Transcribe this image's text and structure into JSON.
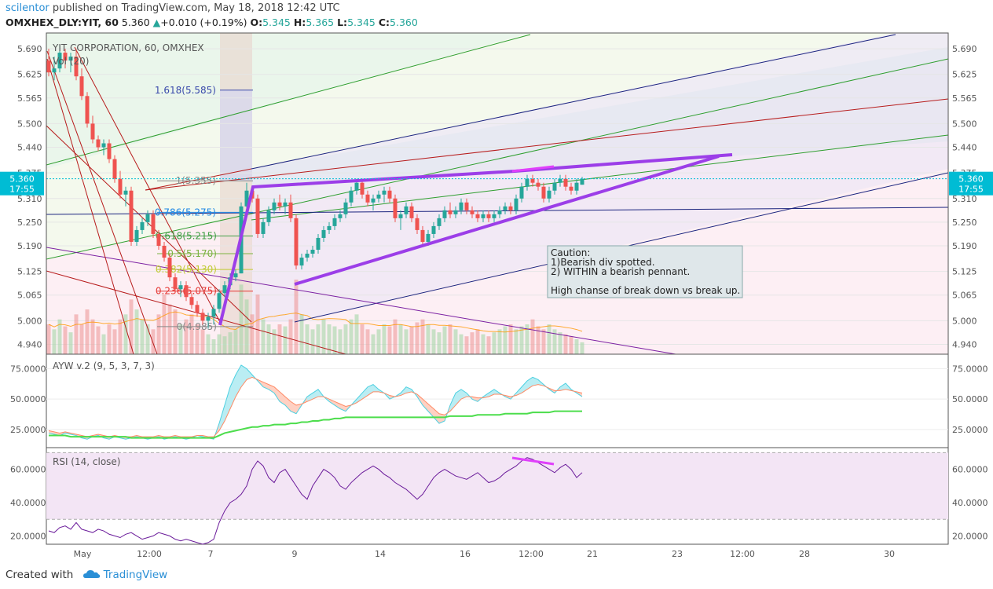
{
  "header": {
    "author": "scilentor",
    "published": "published on TradingView.com, May 18, 2018 12:42 UTC",
    "symbol": "OMXHEX_DLY:YIT, 60",
    "last": "5.360",
    "change": "+0.010 (+0.19%)",
    "o_label": "O:",
    "o": "5.345",
    "h_label": "H:",
    "h": "5.365",
    "l_label": "L:",
    "l": "5.345",
    "c_label": "C:",
    "c": "5.360"
  },
  "footer": {
    "created_with": "Created with",
    "brand": "TradingView"
  },
  "colors": {
    "up": "#26a69a",
    "down": "#ef5350",
    "bg_green": "#e8f5e9",
    "bg_pink": "#fce4ec",
    "bg_purple": "#ede7f6",
    "rsi_band": "#f3e5f5",
    "pennant": "#9c3ee8",
    "divergence": "#e040fb",
    "blue_line": "#1a237e",
    "green_line": "#2e9e2e",
    "red_line": "#b71c1c",
    "purple_line": "#7b1fa2"
  },
  "chart_data": [
    {
      "type": "candlestick",
      "title": "YIT CORPORATION, 60, OMXHEX",
      "volume_label": "Vol (20)",
      "yticks": [
        "5.690",
        "5.625",
        "5.565",
        "5.500",
        "5.440",
        "5.375",
        "5.310",
        "5.250",
        "5.190",
        "5.125",
        "5.065",
        "5.000",
        "4.940"
      ],
      "ylim": [
        4.915,
        5.73
      ],
      "last_price_label": "5.360",
      "countdown_label": "17:55",
      "xticks": [
        "May",
        "12:00",
        "4",
        "7",
        "8",
        "9",
        "14",
        "16",
        "12:00",
        "21",
        "23",
        "12:00",
        "28",
        "30"
      ],
      "fib_levels": [
        {
          "label": "1.618(5.585)",
          "value": 5.585
        },
        {
          "label": "1(5.355)",
          "value": 5.355
        },
        {
          "label": "0.786(5.275)",
          "value": 5.275
        },
        {
          "label": "0.618(5.215)",
          "value": 5.215
        },
        {
          "label": "0.5(5.170)",
          "value": 5.17
        },
        {
          "label": "0.382(5.130)",
          "value": 5.13
        },
        {
          "label": "0.236(5.075)",
          "value": 5.075
        },
        {
          "label": "0(4.985)",
          "value": 4.985
        }
      ],
      "annotation": [
        "Caution:",
        "1)Bearish div spotted.",
        "2) WITHIN a bearish pennant.",
        "",
        "High chanse of break down vs break up."
      ],
      "candles": [
        [
          5.66,
          5.69,
          5.62,
          5.63
        ],
        [
          5.63,
          5.67,
          5.61,
          5.64
        ],
        [
          5.64,
          5.7,
          5.63,
          5.68
        ],
        [
          5.68,
          5.69,
          5.64,
          5.66
        ],
        [
          5.66,
          5.68,
          5.63,
          5.67
        ],
        [
          5.67,
          5.69,
          5.61,
          5.62
        ],
        [
          5.62,
          5.64,
          5.56,
          5.57
        ],
        [
          5.57,
          5.58,
          5.49,
          5.5
        ],
        [
          5.5,
          5.52,
          5.45,
          5.46
        ],
        [
          5.46,
          5.47,
          5.43,
          5.44
        ],
        [
          5.44,
          5.46,
          5.42,
          5.45
        ],
        [
          5.45,
          5.46,
          5.4,
          5.41
        ],
        [
          5.41,
          5.42,
          5.35,
          5.36
        ],
        [
          5.36,
          5.38,
          5.31,
          5.32
        ],
        [
          5.32,
          5.34,
          5.29,
          5.33
        ],
        [
          5.33,
          5.34,
          5.19,
          5.2
        ],
        [
          5.2,
          5.24,
          5.19,
          5.23
        ],
        [
          5.23,
          5.26,
          5.22,
          5.25
        ],
        [
          5.25,
          5.28,
          5.24,
          5.27
        ],
        [
          5.27,
          5.28,
          5.21,
          5.22
        ],
        [
          5.22,
          5.23,
          5.18,
          5.19
        ],
        [
          5.19,
          5.2,
          5.15,
          5.16
        ],
        [
          5.16,
          5.17,
          5.1,
          5.11
        ],
        [
          5.11,
          5.12,
          5.07,
          5.08
        ],
        [
          5.08,
          5.1,
          5.06,
          5.09
        ],
        [
          5.09,
          5.1,
          5.05,
          5.06
        ],
        [
          5.06,
          5.07,
          5.03,
          5.04
        ],
        [
          5.04,
          5.05,
          5.01,
          5.02
        ],
        [
          5.02,
          5.03,
          4.99,
          5.0
        ],
        [
          5.0,
          5.02,
          4.98,
          5.01
        ],
        [
          5.01,
          5.04,
          4.99,
          5.03
        ],
        [
          5.03,
          5.08,
          5.02,
          5.07
        ],
        [
          5.07,
          5.1,
          5.06,
          5.09
        ],
        [
          5.09,
          5.12,
          5.08,
          5.11
        ],
        [
          5.11,
          5.13,
          5.1,
          5.12
        ],
        [
          5.12,
          5.3,
          5.12,
          5.29
        ],
        [
          5.29,
          5.35,
          5.28,
          5.33
        ],
        [
          5.33,
          5.34,
          5.3,
          5.31
        ],
        [
          5.31,
          5.32,
          5.21,
          5.22
        ],
        [
          5.22,
          5.26,
          5.21,
          5.25
        ],
        [
          5.25,
          5.29,
          5.24,
          5.28
        ],
        [
          5.28,
          5.31,
          5.27,
          5.3
        ],
        [
          5.3,
          5.32,
          5.28,
          5.29
        ],
        [
          5.29,
          5.31,
          5.27,
          5.3
        ],
        [
          5.3,
          5.32,
          5.25,
          5.26
        ],
        [
          5.26,
          5.27,
          5.13,
          5.14
        ],
        [
          5.14,
          5.17,
          5.13,
          5.16
        ],
        [
          5.16,
          5.18,
          5.15,
          5.17
        ],
        [
          5.17,
          5.19,
          5.16,
          5.18
        ],
        [
          5.18,
          5.22,
          5.17,
          5.21
        ],
        [
          5.21,
          5.24,
          5.2,
          5.23
        ],
        [
          5.23,
          5.25,
          5.22,
          5.24
        ],
        [
          5.24,
          5.27,
          5.23,
          5.26
        ],
        [
          5.26,
          5.28,
          5.25,
          5.27
        ],
        [
          5.27,
          5.31,
          5.26,
          5.3
        ],
        [
          5.3,
          5.34,
          5.29,
          5.33
        ],
        [
          5.33,
          5.36,
          5.32,
          5.35
        ],
        [
          5.35,
          5.36,
          5.31,
          5.32
        ],
        [
          5.32,
          5.33,
          5.29,
          5.3
        ],
        [
          5.3,
          5.32,
          5.28,
          5.31
        ],
        [
          5.31,
          5.33,
          5.3,
          5.32
        ],
        [
          5.32,
          5.34,
          5.3,
          5.33
        ],
        [
          5.33,
          5.34,
          5.3,
          5.31
        ],
        [
          5.31,
          5.32,
          5.25,
          5.26
        ],
        [
          5.26,
          5.28,
          5.23,
          5.27
        ],
        [
          5.27,
          5.3,
          5.26,
          5.29
        ],
        [
          5.29,
          5.3,
          5.25,
          5.26
        ],
        [
          5.26,
          5.27,
          5.22,
          5.23
        ],
        [
          5.23,
          5.24,
          5.19,
          5.2
        ],
        [
          5.2,
          5.23,
          5.19,
          5.22
        ],
        [
          5.22,
          5.25,
          5.21,
          5.24
        ],
        [
          5.24,
          5.27,
          5.23,
          5.26
        ],
        [
          5.26,
          5.29,
          5.25,
          5.28
        ],
        [
          5.28,
          5.3,
          5.26,
          5.27
        ],
        [
          5.27,
          5.29,
          5.26,
          5.28
        ],
        [
          5.28,
          5.31,
          5.27,
          5.3
        ],
        [
          5.3,
          5.31,
          5.27,
          5.28
        ],
        [
          5.28,
          5.29,
          5.26,
          5.27
        ],
        [
          5.27,
          5.28,
          5.25,
          5.26
        ],
        [
          5.26,
          5.28,
          5.25,
          5.27
        ],
        [
          5.27,
          5.28,
          5.25,
          5.26
        ],
        [
          5.26,
          5.28,
          5.25,
          5.27
        ],
        [
          5.27,
          5.29,
          5.26,
          5.28
        ],
        [
          5.28,
          5.3,
          5.27,
          5.29
        ],
        [
          5.29,
          5.3,
          5.27,
          5.28
        ],
        [
          5.28,
          5.32,
          5.27,
          5.31
        ],
        [
          5.31,
          5.35,
          5.3,
          5.34
        ],
        [
          5.34,
          5.37,
          5.33,
          5.36
        ],
        [
          5.36,
          5.37,
          5.34,
          5.35
        ],
        [
          5.35,
          5.36,
          5.33,
          5.34
        ],
        [
          5.34,
          5.35,
          5.3,
          5.31
        ],
        [
          5.31,
          5.34,
          5.3,
          5.33
        ],
        [
          5.33,
          5.36,
          5.32,
          5.35
        ],
        [
          5.35,
          5.37,
          5.34,
          5.36
        ],
        [
          5.36,
          5.37,
          5.33,
          5.34
        ],
        [
          5.34,
          5.35,
          5.32,
          5.33
        ],
        [
          5.33,
          5.36,
          5.32,
          5.35
        ],
        [
          5.345,
          5.365,
          5.345,
          5.36
        ]
      ],
      "volume": [
        30,
        25,
        35,
        28,
        22,
        40,
        30,
        45,
        35,
        28,
        20,
        30,
        25,
        35,
        40,
        55,
        45,
        35,
        30,
        25,
        40,
        60,
        50,
        45,
        30,
        35,
        40,
        30,
        25,
        20,
        15,
        20,
        18,
        22,
        25,
        70,
        55,
        40,
        60,
        35,
        30,
        25,
        30,
        28,
        35,
        75,
        40,
        30,
        25,
        30,
        35,
        30,
        28,
        25,
        30,
        35,
        40,
        30,
        25,
        20,
        25,
        30,
        28,
        35,
        30,
        25,
        28,
        32,
        35,
        30,
        25,
        22,
        28,
        30,
        25,
        20,
        18,
        22,
        25,
        20,
        18,
        22,
        25,
        28,
        30,
        25,
        28,
        30,
        35,
        28,
        25,
        30,
        25,
        22,
        20,
        18,
        15,
        12
      ]
    },
    {
      "type": "line",
      "title": "AYW v.2 (9, 5, 3, 7, 3)",
      "yticks": [
        "75.0000",
        "50.0000",
        "25.0000"
      ],
      "ylim": [
        10,
        87
      ],
      "series": [
        {
          "values": [
            22,
            21,
            20,
            22,
            21,
            20,
            18,
            17,
            19,
            20,
            18,
            17,
            19,
            18,
            17,
            18,
            19,
            18,
            17,
            18,
            19,
            17,
            18,
            19,
            18,
            17,
            18,
            20,
            19,
            18,
            17,
            30,
            45,
            60,
            70,
            78,
            75,
            70,
            65,
            60,
            58,
            55,
            48,
            45,
            40,
            38,
            45,
            52,
            55,
            58,
            52,
            48,
            45,
            42,
            40,
            45,
            50,
            55,
            60,
            62,
            58,
            55,
            50,
            52,
            55,
            60,
            58,
            52,
            45,
            40,
            35,
            30,
            32,
            45,
            55,
            58,
            55,
            50,
            48,
            52,
            55,
            58,
            55,
            52,
            50,
            55,
            60,
            65,
            68,
            66,
            62,
            58,
            55,
            60,
            63,
            58,
            55,
            52
          ]
        },
        {
          "values": [
            24,
            23,
            22,
            23,
            22,
            21,
            20,
            19,
            20,
            21,
            20,
            19,
            20,
            19,
            19,
            19,
            20,
            19,
            19,
            19,
            20,
            19,
            19,
            20,
            19,
            19,
            19,
            20,
            20,
            19,
            19,
            24,
            32,
            42,
            52,
            60,
            66,
            68,
            66,
            64,
            62,
            60,
            56,
            52,
            48,
            45,
            46,
            48,
            50,
            52,
            52,
            50,
            48,
            46,
            44,
            45,
            47,
            50,
            53,
            56,
            56,
            55,
            53,
            52,
            53,
            55,
            56,
            54,
            50,
            46,
            42,
            38,
            37,
            40,
            45,
            50,
            52,
            52,
            51,
            51,
            52,
            54,
            54,
            53,
            52,
            53,
            55,
            58,
            61,
            62,
            61,
            59,
            57,
            57,
            58,
            57,
            56,
            55
          ]
        },
        {
          "values": [
            20,
            20,
            20,
            20,
            19,
            19,
            19,
            19,
            19,
            19,
            19,
            19,
            19,
            19,
            19,
            18,
            18,
            18,
            18,
            18,
            18,
            18,
            18,
            18,
            18,
            18,
            18,
            18,
            18,
            18,
            18,
            20,
            22,
            23,
            24,
            25,
            26,
            27,
            27,
            28,
            28,
            29,
            29,
            29,
            30,
            30,
            31,
            31,
            32,
            32,
            33,
            33,
            34,
            34,
            35,
            35,
            35,
            35,
            35,
            35,
            35,
            35,
            35,
            35,
            35,
            35,
            35,
            35,
            35,
            35,
            35,
            35,
            35,
            36,
            36,
            36,
            36,
            36,
            37,
            37,
            37,
            37,
            37,
            38,
            38,
            38,
            38,
            38,
            39,
            39,
            39,
            39,
            40,
            40,
            40,
            40,
            40,
            40
          ]
        }
      ]
    },
    {
      "type": "line",
      "title": "RSI (14, close)",
      "yticks": [
        "60.0000",
        "40.0000",
        "20.0000"
      ],
      "ylim": [
        15,
        73
      ],
      "bands": [
        70,
        30
      ],
      "series": [
        {
          "values": [
            23,
            22,
            25,
            26,
            24,
            28,
            24,
            23,
            22,
            24,
            23,
            21,
            20,
            19,
            21,
            22,
            20,
            18,
            19,
            20,
            22,
            21,
            20,
            18,
            17,
            18,
            17,
            16,
            15,
            16,
            18,
            28,
            35,
            40,
            42,
            45,
            50,
            60,
            65,
            62,
            55,
            52,
            58,
            60,
            55,
            50,
            45,
            42,
            50,
            55,
            60,
            58,
            55,
            50,
            48,
            52,
            55,
            58,
            60,
            62,
            60,
            57,
            55,
            52,
            50,
            48,
            45,
            42,
            45,
            50,
            55,
            58,
            60,
            58,
            56,
            55,
            54,
            56,
            58,
            55,
            52,
            53,
            55,
            58,
            60,
            62,
            65,
            67,
            66,
            64,
            62,
            60,
            58,
            61,
            63,
            60,
            55,
            58
          ]
        }
      ]
    }
  ]
}
